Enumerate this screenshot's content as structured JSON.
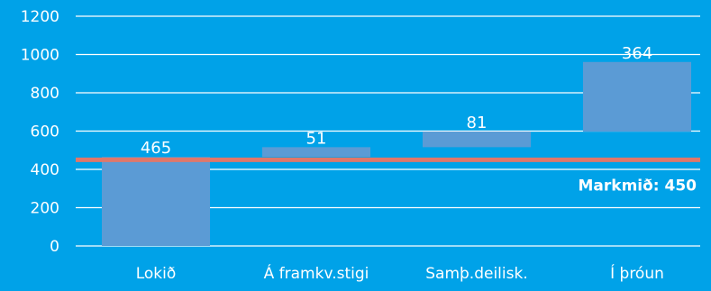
{
  "colors": {
    "background": "#00a2e8",
    "bar": "#5b9bd5",
    "target_line": "#e0776a",
    "gridline": "#ffffff",
    "text": "#ffffff"
  },
  "chart_data": {
    "type": "bar",
    "subtype": "waterfall",
    "title": "",
    "xlabel": "",
    "ylabel": "",
    "ylim": [
      0,
      1200
    ],
    "y_ticks": [
      0,
      200,
      400,
      600,
      800,
      1000,
      1200
    ],
    "grid": true,
    "legend": "none",
    "categories": [
      "Lokið",
      "Á framkv.stigi",
      "Samþ.deilisk.",
      "Í þróun"
    ],
    "values": [
      465,
      51,
      81,
      364
    ],
    "data_labels": [
      "465",
      "51",
      "81",
      "364"
    ],
    "target": {
      "label": "Markmið:",
      "value": 450,
      "value_label": "450"
    }
  }
}
